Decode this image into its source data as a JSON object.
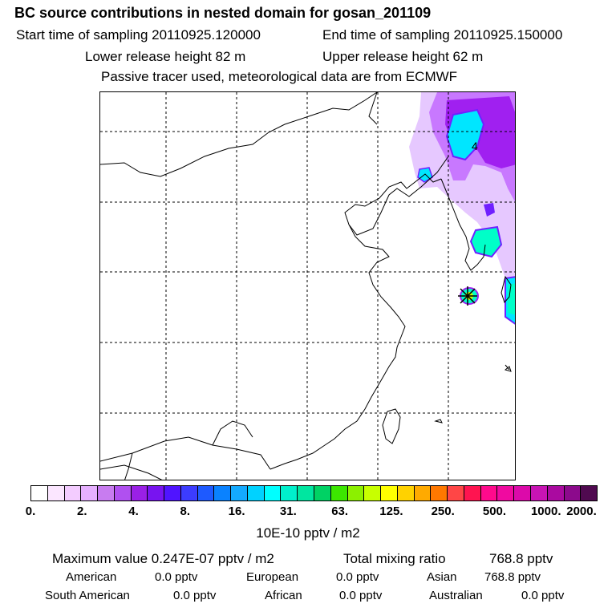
{
  "header": {
    "title": "BC  source contributions in nested domain for gosan_201109",
    "start_label": "Start time of sampling 20110925.120000",
    "end_label": "End time of sampling 20110925.150000",
    "lower_label": "Lower release height   82 m",
    "upper_label": "Upper release height   62 m",
    "note": "Passive tracer used, meteorological data are from ECMWF"
  },
  "map": {
    "contour_label": "4",
    "source_marker": "receptor-asterisk-icon",
    "plume_colors": [
      "#e6c8ff",
      "#c878ff",
      "#a020f0",
      "#7020ff",
      "#00e6ff",
      "#00ffc8"
    ]
  },
  "colorbar": {
    "colors": [
      "#ffffff",
      "#fbe6ff",
      "#f3ccff",
      "#e6b0ff",
      "#c87cf0",
      "#b050f0",
      "#9a20e6",
      "#7814f0",
      "#5014ff",
      "#3c3cff",
      "#1e5aff",
      "#0a82ff",
      "#14aaff",
      "#00d2ff",
      "#00ffff",
      "#00f0cc",
      "#00e6a0",
      "#00d264",
      "#3ce600",
      "#8cf000",
      "#c8ff00",
      "#ffff00",
      "#ffd200",
      "#ffaa00",
      "#ff7800",
      "#ff4646",
      "#ff1450",
      "#ff0a8c",
      "#f00aa0",
      "#dc0aaa",
      "#c814b4",
      "#aa0aa0",
      "#8c0a8c",
      "#500a50"
    ],
    "ticks": [
      "0.",
      "2.",
      "4.",
      "8.",
      "16.",
      "31.",
      "63.",
      "125.",
      "250.",
      "500.",
      "1000.",
      "2000."
    ],
    "unit": "10E-10 pptv / m2"
  },
  "summary": {
    "max_label": "Maximum value  0.247E-07 pptv / m2",
    "total_label": "Total mixing ratio",
    "total_value": "768.8 pptv",
    "american_label": "American",
    "american_value": "0.0 pptv",
    "european_label": "European",
    "european_value": "0.0 pptv",
    "asian_label": "Asian",
    "asian_value": "768.8 pptv",
    "south_american_label": "South American",
    "south_american_value": "0.0 pptv",
    "african_label": "African",
    "african_value": "0.0 pptv",
    "australian_label": "Australian",
    "australian_value": "0.0 pptv"
  }
}
